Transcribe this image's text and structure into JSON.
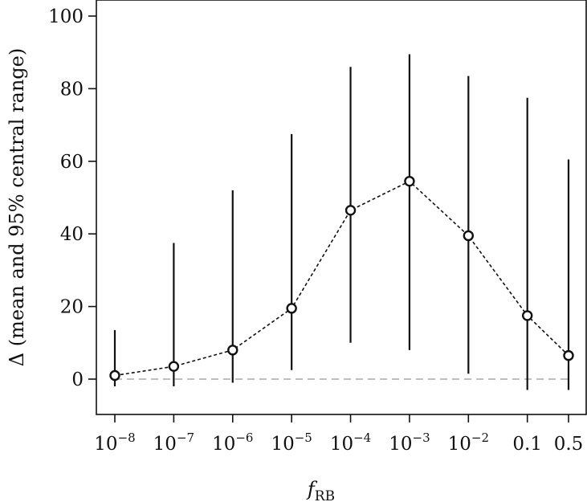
{
  "chart_data": {
    "type": "scatter",
    "title": "",
    "xlabel": {
      "main": "f",
      "sub": "RB"
    },
    "ylabel": "Δ (mean and 95% central range)",
    "ylim": [
      -10,
      102
    ],
    "yticks": [
      0,
      20,
      40,
      60,
      80,
      100
    ],
    "categories": [
      {
        "base": "10",
        "exp": "−8"
      },
      {
        "base": "10",
        "exp": "−7"
      },
      {
        "base": "10",
        "exp": "−6"
      },
      {
        "base": "10",
        "exp": "−5"
      },
      {
        "base": "10",
        "exp": "−4"
      },
      {
        "base": "10",
        "exp": "−3"
      },
      {
        "base": "10",
        "exp": "−2"
      },
      {
        "base": "0.1",
        "exp": ""
      },
      {
        "base": "0.5",
        "exp": ""
      }
    ],
    "x": [
      1e-08,
      1e-07,
      1e-06,
      1e-05,
      0.0001,
      0.001,
      0.01,
      0.1,
      0.5
    ],
    "series": [
      {
        "mean": [
          1,
          3.5,
          8,
          19.5,
          46.5,
          54.5,
          39.5,
          17.5,
          6.5
        ],
        "lower": [
          -2,
          -2,
          -1,
          2.5,
          10,
          8,
          1.5,
          -3,
          -3
        ],
        "upper": [
          13.5,
          37.5,
          52,
          67.5,
          86,
          89.5,
          83.5,
          77.5,
          60.5
        ]
      }
    ],
    "reference_line": {
      "y": 0,
      "style": "dashed",
      "color": "#bfbfbf"
    },
    "line_style": "dotted",
    "marker": "open-circle",
    "grid": false,
    "legend": "none"
  }
}
